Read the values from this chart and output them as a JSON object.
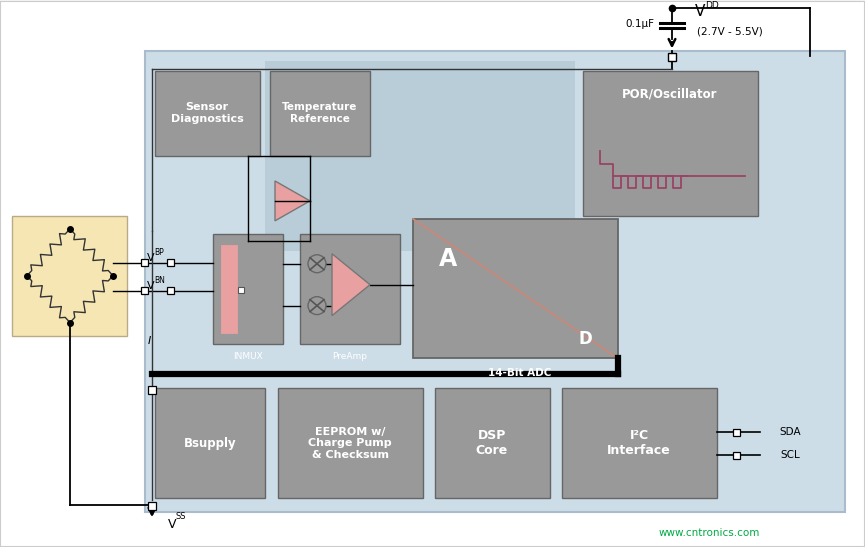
{
  "bg_color": "#f2f2f2",
  "chip_bg": "#ccdde8",
  "inner_bg": "#b8cdd8",
  "block_color": "#999999",
  "sensor_bg": "#f5e6b4",
  "pink_color": "#e8a0a0",
  "green_text": "#00aa44",
  "red_line": "#994466",
  "watermark": "www.cntronics.com",
  "vdd_range": "(2.7V - 5.5V)",
  "cap_label": "0.1μF",
  "sda_label": "SDA",
  "scl_label": "SCL",
  "sensor_diag": "Sensor\nDiagnostics",
  "temp_ref": "Temperature\nReference",
  "por_osc": "POR/Oscillator",
  "inmux_label": "INMUX",
  "preamp_label": "PreAmp",
  "adc_label": "14-Bit ADC",
  "adc_A": "A",
  "adc_D": "D",
  "bsupply_label": "Bsupply",
  "eeprom_label": "EEPROM w/\nCharge Pump\n& Checksum",
  "dsp_label": "DSP\nCore",
  "i2c_label": "I²C\nInterface"
}
